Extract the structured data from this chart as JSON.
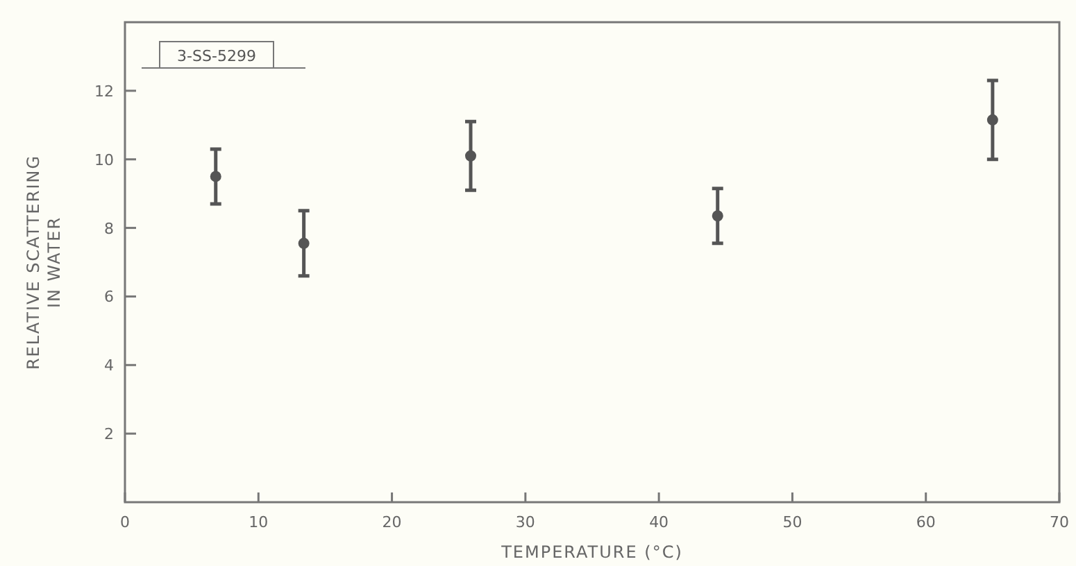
{
  "chart_data": {
    "type": "scatter",
    "xlabel": "TEMPERATURE (°C)",
    "ylabel": "RELATIVE SCATTERING\nIN WATER",
    "annotations": [
      "3-SS-5299"
    ],
    "x": [
      6.8,
      13.4,
      25.9,
      44.4,
      65.0
    ],
    "series": [
      {
        "color": "#555555",
        "values": [
          9.5,
          7.55,
          10.1,
          8.35,
          11.15
        ],
        "errors": [
          0.8,
          0.95,
          1.0,
          0.8,
          1.15
        ]
      }
    ],
    "xlim": [
      0,
      70
    ],
    "xticks": [
      0,
      10,
      20,
      30,
      40,
      50,
      60,
      70
    ],
    "ylim": [
      0,
      14
    ],
    "yticks": [
      2,
      4,
      6,
      8,
      10,
      12
    ],
    "grid": false
  }
}
